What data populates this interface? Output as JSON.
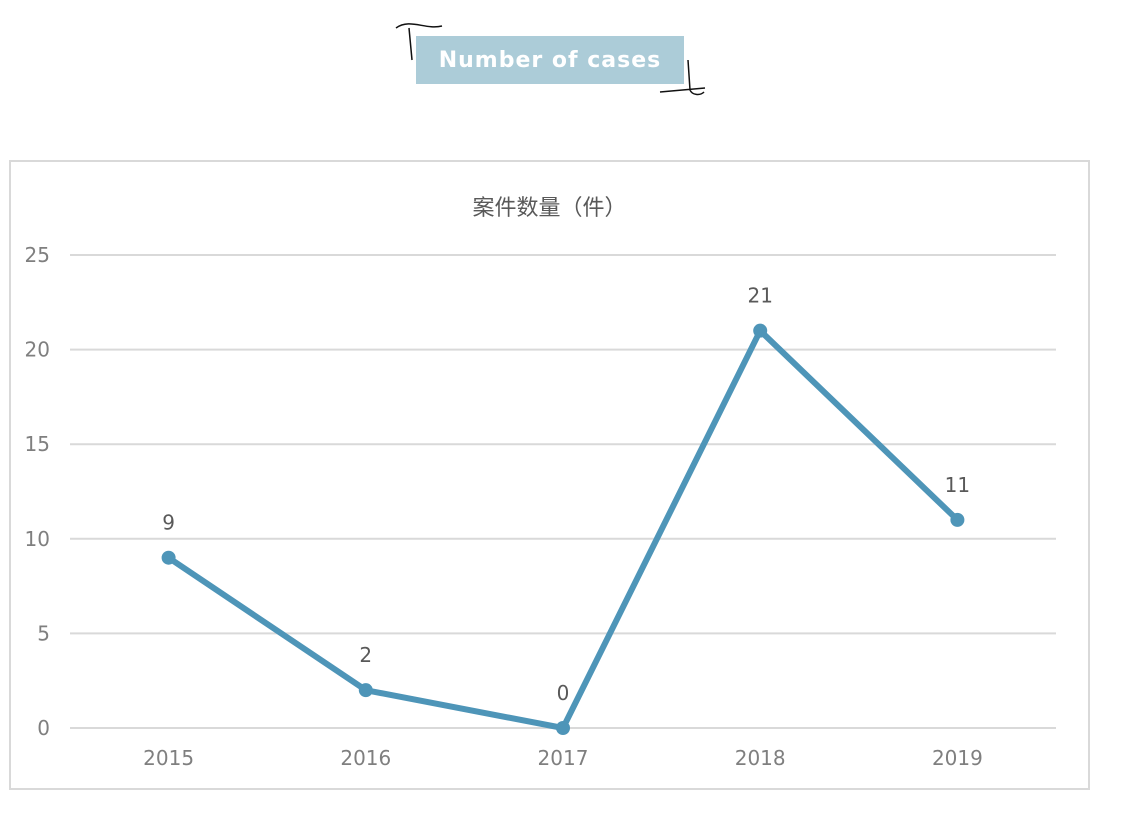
{
  "header": {
    "label": "Number of cases"
  },
  "chart_data": {
    "type": "line",
    "title": "案件数量（件）",
    "categories": [
      "2015",
      "2016",
      "2017",
      "2018",
      "2019"
    ],
    "values": [
      9,
      2,
      0,
      21,
      11
    ],
    "data_labels": [
      "9",
      "2",
      "0",
      "21",
      "11"
    ],
    "ylim": [
      0,
      25
    ],
    "yticks": [
      0,
      5,
      10,
      15,
      20,
      25
    ],
    "grid": true,
    "legend": "none",
    "line_color": "#4e95b8",
    "grid_color": "#d9d9d9"
  }
}
